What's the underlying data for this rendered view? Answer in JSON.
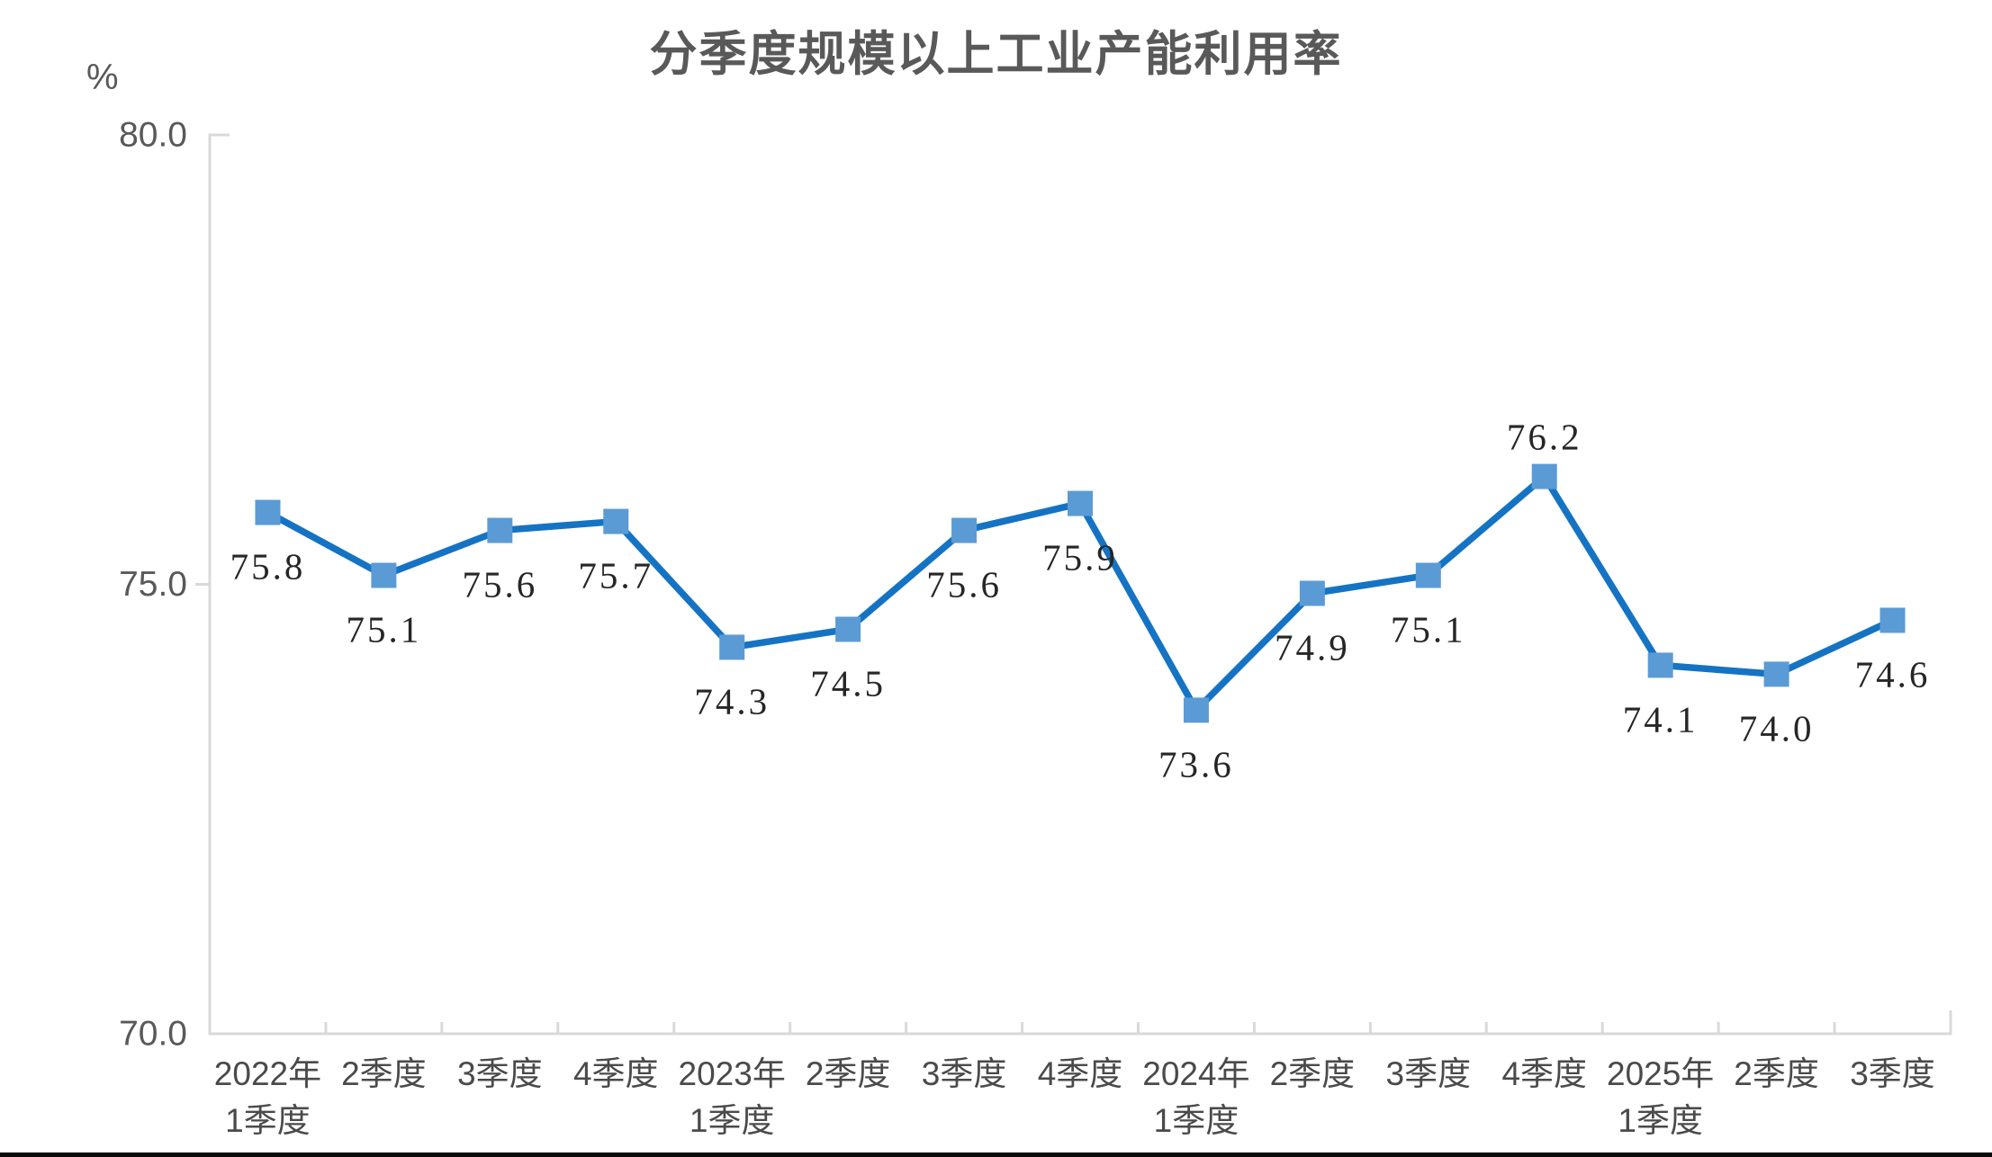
{
  "chart_data": {
    "type": "line",
    "title": "分季度规模以上工业产能利用率",
    "unit": "%",
    "xlabel": "",
    "ylabel": "%",
    "grid": false,
    "legend": "none",
    "ylim": [
      70.0,
      80.0
    ],
    "yticks": [
      {
        "label": "80.0",
        "value": 80.0,
        "tick": false
      },
      {
        "label": "75.0",
        "value": 75.0,
        "tick": true
      },
      {
        "label": "70.0",
        "value": 70.0,
        "tick": false
      }
    ],
    "categories": [
      "2022年\n1季度",
      "2季度",
      "3季度",
      "4季度",
      "2023年\n1季度",
      "2季度",
      "3季度",
      "4季度",
      "2024年\n1季度",
      "2季度",
      "3季度",
      "4季度",
      "2025年\n1季度",
      "2季度",
      "3季度"
    ],
    "values": [
      75.8,
      75.1,
      75.6,
      75.7,
      74.3,
      74.5,
      75.6,
      75.9,
      73.6,
      74.9,
      75.1,
      76.2,
      74.1,
      74.0,
      74.6
    ],
    "data_labels": [
      "75.8",
      "75.1",
      "75.6",
      "75.7",
      "74.3",
      "74.5",
      "75.6",
      "75.9",
      "73.6",
      "74.9",
      "75.1",
      "76.2",
      "74.1",
      "74.0",
      "74.6"
    ],
    "label_positions": [
      "below",
      "below",
      "below",
      "below",
      "below",
      "below",
      "below",
      "below",
      "below",
      "below",
      "below",
      "above",
      "below",
      "below",
      "below"
    ],
    "colors": {
      "line": "#1573C4",
      "marker": "#5B9BD5",
      "axis": "#D9D9D9",
      "title_text": "#595959",
      "axis_text": "#595959",
      "data_label_text": "#262626"
    }
  }
}
